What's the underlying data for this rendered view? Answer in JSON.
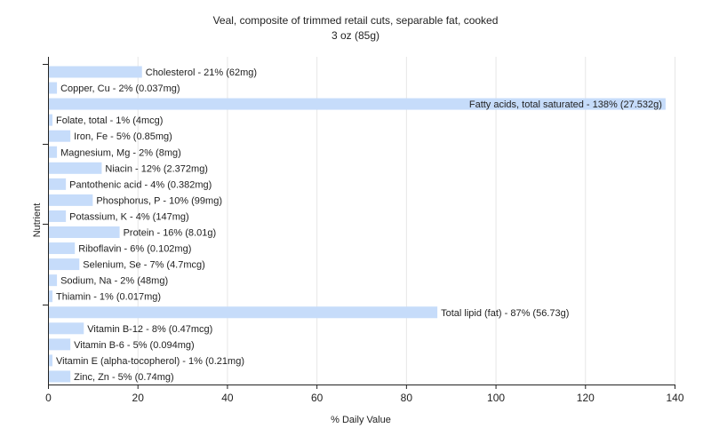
{
  "chart_data": {
    "type": "bar",
    "orientation": "horizontal",
    "title": "Veal, composite of trimmed retail cuts, separable fat, cooked",
    "subtitle": "3 oz (85g)",
    "xlabel": "% Daily Value",
    "ylabel": "Nutrient",
    "xlim": [
      0,
      140
    ],
    "xticks": [
      0,
      20,
      40,
      60,
      80,
      100,
      120,
      140
    ],
    "grid": true,
    "bar_color": "#c6dcfa",
    "categories": [
      "Cholesterol",
      "Copper, Cu",
      "Fatty acids, total saturated",
      "Folate, total",
      "Iron, Fe",
      "Magnesium, Mg",
      "Niacin",
      "Pantothenic acid",
      "Phosphorus, P",
      "Potassium, K",
      "Protein",
      "Riboflavin",
      "Selenium, Se",
      "Sodium, Na",
      "Thiamin",
      "Total lipid (fat)",
      "Vitamin B-12",
      "Vitamin B-6",
      "Vitamin E (alpha-tocopherol)",
      "Zinc, Zn"
    ],
    "values": [
      21,
      2,
      138,
      1,
      5,
      2,
      12,
      4,
      10,
      4,
      16,
      6,
      7,
      2,
      1,
      87,
      8,
      5,
      1,
      5
    ],
    "labels": [
      "Cholesterol - 21% (62mg)",
      "Copper, Cu - 2% (0.037mg)",
      "Fatty acids, total saturated - 138% (27.532g)",
      "Folate, total - 1% (4mcg)",
      "Iron, Fe - 5% (0.85mg)",
      "Magnesium, Mg - 2% (8mg)",
      "Niacin - 12% (2.372mg)",
      "Pantothenic acid - 4% (0.382mg)",
      "Phosphorus, P - 10% (99mg)",
      "Potassium, K - 4% (147mg)",
      "Protein - 16% (8.01g)",
      "Riboflavin - 6% (0.102mg)",
      "Selenium, Se - 7% (4.7mcg)",
      "Sodium, Na - 2% (48mg)",
      "Thiamin - 1% (0.017mg)",
      "Total lipid (fat) - 87% (56.73g)",
      "Vitamin B-12 - 8% (0.47mcg)",
      "Vitamin B-6 - 5% (0.094mg)",
      "Vitamin E (alpha-tocopherol) - 1% (0.21mg)",
      "Zinc, Zn - 5% (0.74mg)"
    ]
  }
}
